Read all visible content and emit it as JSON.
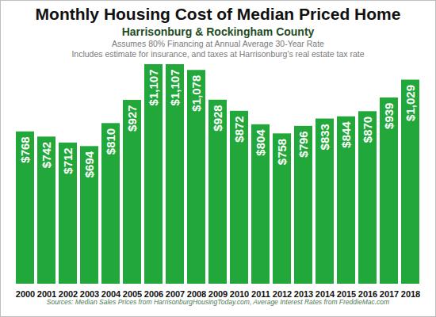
{
  "chart_data": {
    "type": "bar",
    "title": "Monthly Housing Cost of Median Priced Home",
    "subtitle": "Harrisonburg & Rockingham County",
    "annotations": [
      "Assumes 80% Financing at Annual Average 30-Year Rate",
      "Includes estimate for insurance, and taxes at Harrisonburg's real estate tax rate"
    ],
    "source": "Sources: Median Sales Prices from HarrisonburgHousingToday.com, Average Interest Rates from FreddieMac.com",
    "categories": [
      "2000",
      "2001",
      "2002",
      "2003",
      "2004",
      "2005",
      "2006",
      "2007",
      "2008",
      "2009",
      "2010",
      "2011",
      "2012",
      "2013",
      "2014",
      "2015",
      "2016",
      "2017",
      "2018"
    ],
    "values": [
      768,
      742,
      712,
      694,
      810,
      927,
      1107,
      1107,
      1078,
      928,
      872,
      804,
      758,
      796,
      833,
      844,
      870,
      939,
      1029
    ],
    "value_labels": [
      "$768",
      "$742",
      "$712",
      "$694",
      "$810",
      "$927",
      "$1,107",
      "$1,107",
      "$1,078",
      "$928",
      "$872",
      "$804",
      "$758",
      "$796",
      "$833",
      "$844",
      "$870",
      "$939",
      "$1,029"
    ],
    "color": "#22a83a",
    "data_labels": true,
    "tick_labels": "x",
    "grid": false
  }
}
